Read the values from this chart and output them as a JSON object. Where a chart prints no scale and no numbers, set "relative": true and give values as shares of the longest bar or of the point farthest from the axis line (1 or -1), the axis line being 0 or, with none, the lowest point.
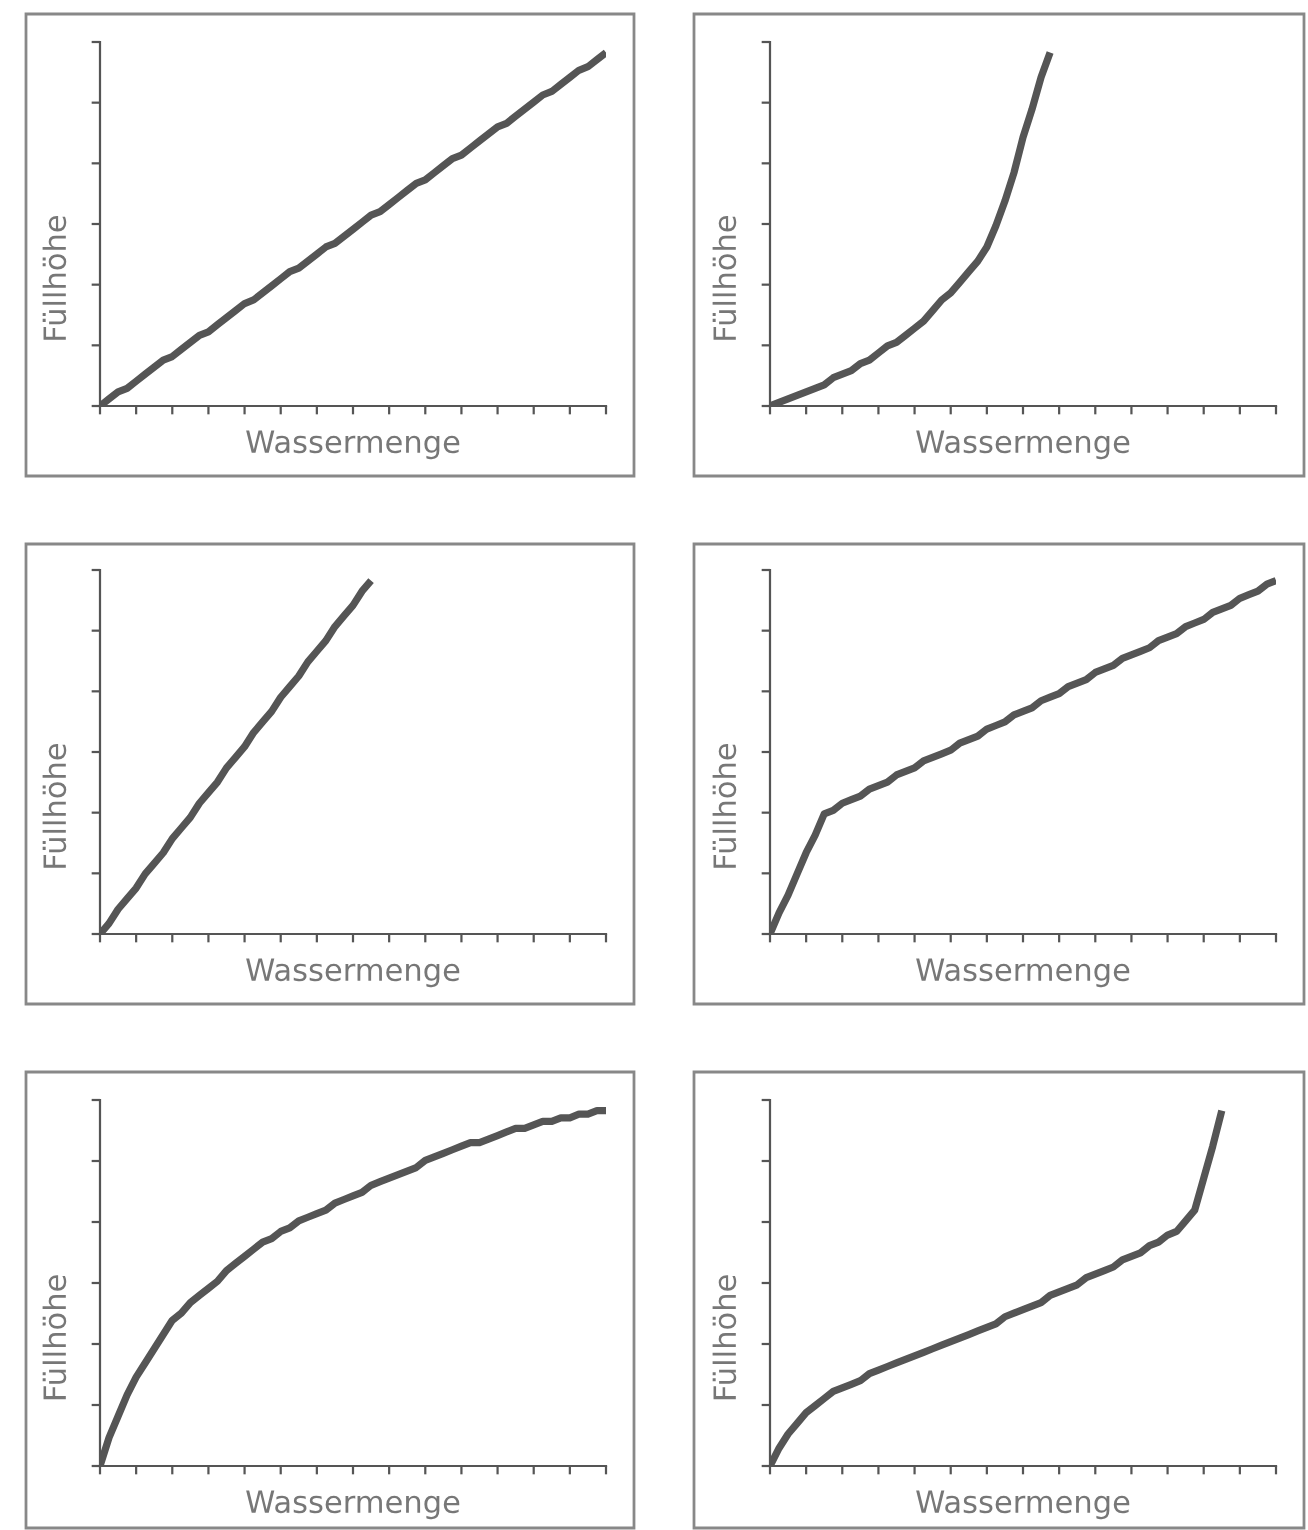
{
  "chart_data": [
    {
      "type": "line",
      "xlabel": "Wassermenge",
      "ylabel": "Füllhöhe",
      "relative": true,
      "categories": [
        null,
        null,
        null,
        null,
        null,
        null,
        null,
        null,
        null,
        null,
        null,
        null,
        null,
        null,
        null,
        null,
        null,
        null,
        null,
        null,
        null,
        null,
        null,
        null,
        null,
        null,
        null,
        null,
        null,
        null,
        null,
        null,
        null,
        null,
        null,
        null,
        null,
        null,
        null,
        null,
        null,
        null,
        null,
        null,
        null,
        null,
        null,
        null,
        null,
        null,
        null,
        null,
        null,
        null,
        null,
        null,
        null
      ],
      "series": [
        {
          "color": "#555555",
          "values": [
            0,
            0.02,
            0.04,
            0.05,
            0.07,
            0.09,
            0.11,
            0.13,
            0.14,
            0.16,
            0.18,
            0.2,
            0.21,
            0.23,
            0.25,
            0.27,
            0.29,
            0.3,
            0.32,
            0.34,
            0.36,
            0.38,
            0.39,
            0.41,
            0.43,
            0.45,
            0.46,
            0.48,
            0.5,
            0.52,
            0.54,
            0.55,
            0.57,
            0.59,
            0.61,
            0.63,
            0.64,
            0.66,
            0.68,
            0.7,
            0.71,
            0.73,
            0.75,
            0.77,
            0.79,
            0.8,
            0.82,
            0.84,
            0.86,
            0.88,
            0.89,
            0.91,
            0.93,
            0.95,
            0.96,
            0.98,
            1
          ]
        }
      ]
    },
    {
      "type": "line",
      "xlabel": "Wassermenge",
      "ylabel": "Füllhöhe",
      "relative": true,
      "categories": [
        null,
        null,
        null,
        null,
        null,
        null,
        null,
        null,
        null,
        null,
        null,
        null,
        null,
        null,
        null,
        null,
        null,
        null,
        null,
        null,
        null,
        null,
        null,
        null,
        null,
        null,
        null,
        null,
        null,
        null,
        null,
        null,
        null,
        null,
        null,
        null,
        null,
        null,
        null,
        null,
        null,
        null,
        null,
        null,
        null,
        null,
        null,
        null,
        null,
        null,
        null,
        null,
        null,
        null,
        null,
        null,
        null
      ],
      "series": [
        {
          "color": "#555555",
          "values": [
            0,
            0.01,
            0.02,
            0.03,
            0.04,
            0.05,
            0.06,
            0.08,
            0.09,
            0.1,
            0.12,
            0.13,
            0.15,
            0.17,
            0.18,
            0.2,
            0.22,
            0.24,
            0.27,
            0.3,
            0.32,
            0.35,
            0.38,
            0.41,
            0.45,
            0.51,
            0.58,
            0.66,
            0.76,
            0.84,
            0.93,
            1,
            null,
            null,
            null,
            null,
            null,
            null,
            null,
            null,
            null,
            null,
            null,
            null,
            null,
            null,
            null,
            null,
            null,
            null,
            null,
            null,
            null,
            null,
            null,
            null,
            null
          ]
        }
      ]
    },
    {
      "type": "line",
      "xlabel": "Wassermenge",
      "ylabel": "Füllhöhe",
      "relative": true,
      "categories": [
        null,
        null,
        null,
        null,
        null,
        null,
        null,
        null,
        null,
        null,
        null,
        null,
        null,
        null,
        null,
        null,
        null,
        null,
        null,
        null,
        null,
        null,
        null,
        null,
        null,
        null,
        null,
        null,
        null,
        null,
        null,
        null,
        null,
        null,
        null,
        null,
        null,
        null,
        null,
        null,
        null,
        null,
        null,
        null,
        null,
        null,
        null,
        null,
        null,
        null,
        null,
        null,
        null,
        null,
        null,
        null,
        null
      ],
      "series": [
        {
          "color": "#555555",
          "values": [
            0,
            0.03,
            0.07,
            0.1,
            0.13,
            0.17,
            0.2,
            0.23,
            0.27,
            0.3,
            0.33,
            0.37,
            0.4,
            0.43,
            0.47,
            0.5,
            0.53,
            0.57,
            0.6,
            0.63,
            0.67,
            0.7,
            0.73,
            0.77,
            0.8,
            0.83,
            0.87,
            0.9,
            0.93,
            0.97,
            1,
            null,
            null,
            null,
            null,
            null,
            null,
            null,
            null,
            null,
            null,
            null,
            null,
            null,
            null,
            null,
            null,
            null,
            null,
            null,
            null,
            null,
            null,
            null,
            null,
            null,
            null
          ]
        }
      ]
    },
    {
      "type": "line",
      "xlabel": "Wassermenge",
      "ylabel": "Füllhöhe",
      "relative": true,
      "categories": [
        null,
        null,
        null,
        null,
        null,
        null,
        null,
        null,
        null,
        null,
        null,
        null,
        null,
        null,
        null,
        null,
        null,
        null,
        null,
        null,
        null,
        null,
        null,
        null,
        null,
        null,
        null,
        null,
        null,
        null,
        null,
        null,
        null,
        null,
        null,
        null,
        null,
        null,
        null,
        null,
        null,
        null,
        null,
        null,
        null,
        null,
        null,
        null,
        null,
        null,
        null,
        null,
        null,
        null,
        null,
        null,
        null
      ],
      "series": [
        {
          "color": "#555555",
          "values": [
            0,
            0.06,
            0.11,
            0.17,
            0.23,
            0.28,
            0.34,
            0.35,
            0.37,
            0.38,
            0.39,
            0.41,
            0.42,
            0.43,
            0.45,
            0.46,
            0.47,
            0.49,
            0.5,
            0.51,
            0.52,
            0.54,
            0.55,
            0.56,
            0.58,
            0.59,
            0.6,
            0.62,
            0.63,
            0.64,
            0.66,
            0.67,
            0.68,
            0.7,
            0.71,
            0.72,
            0.74,
            0.75,
            0.76,
            0.78,
            0.79,
            0.8,
            0.81,
            0.83,
            0.84,
            0.85,
            0.87,
            0.88,
            0.89,
            0.91,
            0.92,
            0.93,
            0.95,
            0.96,
            0.97,
            0.99,
            1
          ]
        }
      ]
    },
    {
      "type": "line",
      "xlabel": "Wassermenge",
      "ylabel": "Füllhöhe",
      "relative": true,
      "categories": [
        null,
        null,
        null,
        null,
        null,
        null,
        null,
        null,
        null,
        null,
        null,
        null,
        null,
        null,
        null,
        null,
        null,
        null,
        null,
        null,
        null,
        null,
        null,
        null,
        null,
        null,
        null,
        null,
        null,
        null,
        null,
        null,
        null,
        null,
        null,
        null,
        null,
        null,
        null,
        null,
        null,
        null,
        null,
        null,
        null,
        null,
        null,
        null,
        null,
        null,
        null,
        null,
        null,
        null,
        null,
        null,
        null
      ],
      "series": [
        {
          "color": "#555555",
          "values": [
            0,
            0.08,
            0.14,
            0.2,
            0.25,
            0.29,
            0.33,
            0.37,
            0.41,
            0.43,
            0.46,
            0.48,
            0.5,
            0.52,
            0.55,
            0.57,
            0.59,
            0.61,
            0.63,
            0.64,
            0.66,
            0.67,
            0.69,
            0.7,
            0.71,
            0.72,
            0.74,
            0.75,
            0.76,
            0.77,
            0.79,
            0.8,
            0.81,
            0.82,
            0.83,
            0.84,
            0.86,
            0.87,
            0.88,
            0.89,
            0.9,
            0.91,
            0.91,
            0.92,
            0.93,
            0.94,
            0.95,
            0.95,
            0.96,
            0.97,
            0.97,
            0.98,
            0.98,
            0.99,
            0.99,
            1,
            1
          ]
        }
      ]
    },
    {
      "type": "line",
      "xlabel": "Wassermenge",
      "ylabel": "Füllhöhe",
      "relative": true,
      "categories": [
        null,
        null,
        null,
        null,
        null,
        null,
        null,
        null,
        null,
        null,
        null,
        null,
        null,
        null,
        null,
        null,
        null,
        null,
        null,
        null,
        null,
        null,
        null,
        null,
        null,
        null,
        null,
        null,
        null,
        null,
        null,
        null,
        null,
        null,
        null,
        null,
        null,
        null,
        null,
        null,
        null,
        null,
        null,
        null,
        null,
        null,
        null,
        null,
        null,
        null,
        null,
        null,
        null,
        null,
        null,
        null,
        null
      ],
      "series": [
        {
          "color": "#555555",
          "values": [
            0,
            0.05,
            0.09,
            0.12,
            0.15,
            0.17,
            0.19,
            0.21,
            0.22,
            0.23,
            0.24,
            0.26,
            0.27,
            0.28,
            0.29,
            0.3,
            0.31,
            0.32,
            0.33,
            0.34,
            0.35,
            0.36,
            0.37,
            0.38,
            0.39,
            0.4,
            0.42,
            0.43,
            0.44,
            0.45,
            0.46,
            0.48,
            0.49,
            0.5,
            0.51,
            0.53,
            0.54,
            0.55,
            0.56,
            0.58,
            0.59,
            0.6,
            0.62,
            0.63,
            0.65,
            0.66,
            0.69,
            0.72,
            0.81,
            0.9,
            1,
            null,
            null,
            null,
            null,
            null,
            null
          ]
        }
      ]
    }
  ]
}
